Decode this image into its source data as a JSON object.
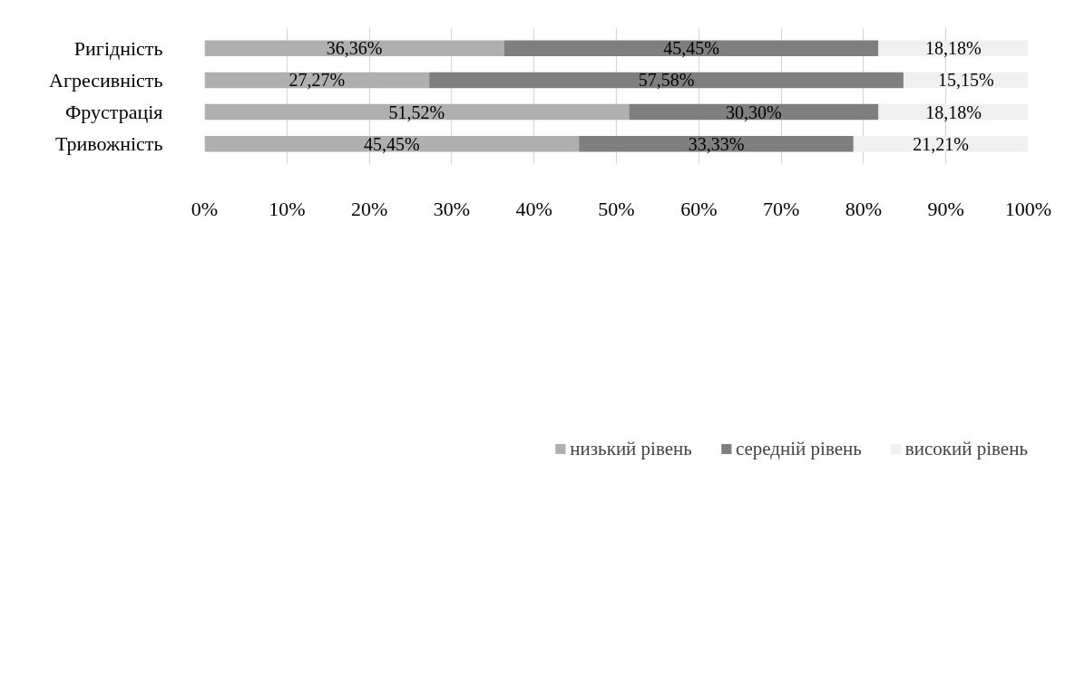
{
  "chart_data": {
    "type": "bar",
    "orientation": "horizontal",
    "stacked": true,
    "categories": [
      "Ригідність",
      "Агресивність",
      "Фрустрація",
      "Тривожність"
    ],
    "series": [
      {
        "name": "низький рівень",
        "color": "#afafaf",
        "values": [
          36.36,
          27.27,
          51.52,
          45.45
        ],
        "value_labels": [
          "36,36%",
          "27,27%",
          "51,52%",
          "45,45%"
        ]
      },
      {
        "name": "середній рівень",
        "color": "#7f7f7f",
        "values": [
          45.45,
          57.58,
          30.3,
          33.33
        ],
        "value_labels": [
          "45,45%",
          "57,58%",
          "30,30%",
          "33,33%"
        ]
      },
      {
        "name": "високий рівень",
        "color": "#f0f0f0",
        "values": [
          18.18,
          15.15,
          18.18,
          21.21
        ],
        "value_labels": [
          "18,18%",
          "15,15%",
          "18,18%",
          "21,21%"
        ]
      }
    ],
    "xlim": [
      0,
      100
    ],
    "xticks": [
      {
        "value": 0,
        "label": "0%"
      },
      {
        "value": 10,
        "label": "10%"
      },
      {
        "value": 20,
        "label": "20%"
      },
      {
        "value": 30,
        "label": "30%"
      },
      {
        "value": 40,
        "label": "40%"
      },
      {
        "value": 50,
        "label": "50%"
      },
      {
        "value": 60,
        "label": "60%"
      },
      {
        "value": 70,
        "label": "70%"
      },
      {
        "value": 80,
        "label": "80%"
      },
      {
        "value": 90,
        "label": "90%"
      },
      {
        "value": 100,
        "label": "100%"
      }
    ],
    "grid": "x",
    "legend": "bottom"
  }
}
